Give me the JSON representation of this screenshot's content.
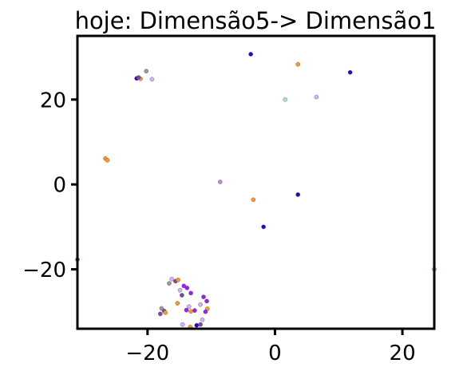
{
  "chart_data": {
    "type": "scatter",
    "title": "hoje: Dimensão5-> Dimensão1",
    "xlabel": "",
    "ylabel": "",
    "xlim": [
      -31,
      25
    ],
    "ylim": [
      -34,
      35
    ],
    "x_ticks": [
      -20,
      0,
      20
    ],
    "y_ticks": [
      -20,
      0,
      20
    ],
    "x_tick_labels": [
      "−20",
      "0",
      "20"
    ],
    "y_tick_labels": [
      "−20",
      "0",
      "20"
    ],
    "grid": false,
    "legend": "none",
    "colors": {
      "orange": "#ff9a1a",
      "blue": "#2a00d4",
      "violet": "#9a1fff",
      "purple": "#7b4aa0",
      "lilac": "#d4b0ff",
      "gray": "#9a9a9a",
      "green": "#a8e8b0",
      "pink": "#c090c8",
      "outline": "#555555"
    },
    "points": [
      {
        "x": -3.8,
        "y": 30.7,
        "c": "blue"
      },
      {
        "x": 3.6,
        "y": 28.3,
        "c": "orange"
      },
      {
        "x": 11.8,
        "y": 26.4,
        "c": "blue"
      },
      {
        "x": -20.2,
        "y": 26.7,
        "c": "gray"
      },
      {
        "x": -21.7,
        "y": 25.0,
        "c": "blue"
      },
      {
        "x": -21.1,
        "y": 24.9,
        "c": "orange"
      },
      {
        "x": -21.4,
        "y": 25.2,
        "c": "purple"
      },
      {
        "x": -19.3,
        "y": 24.8,
        "c": "lilac"
      },
      {
        "x": 1.6,
        "y": 20.0,
        "c": "green"
      },
      {
        "x": 6.5,
        "y": 20.6,
        "c": "lilac"
      },
      {
        "x": -26.6,
        "y": 6.1,
        "c": "orange"
      },
      {
        "x": -26.3,
        "y": 5.7,
        "c": "orange"
      },
      {
        "x": -8.6,
        "y": 0.6,
        "c": "pink"
      },
      {
        "x": -3.4,
        "y": -3.6,
        "c": "orange"
      },
      {
        "x": 3.6,
        "y": -2.4,
        "c": "blue"
      },
      {
        "x": -1.8,
        "y": -10.0,
        "c": "blue"
      },
      {
        "x": -31.0,
        "y": -17.7,
        "c": "purple"
      },
      {
        "x": 25.0,
        "y": -20.0,
        "c": "orange"
      },
      {
        "x": -16.2,
        "y": -22.3,
        "c": "lilac"
      },
      {
        "x": -15.6,
        "y": -22.8,
        "c": "purple"
      },
      {
        "x": -15.2,
        "y": -22.5,
        "c": "orange"
      },
      {
        "x": -16.6,
        "y": -23.3,
        "c": "gray"
      },
      {
        "x": -14.3,
        "y": -23.9,
        "c": "violet"
      },
      {
        "x": -13.8,
        "y": -24.4,
        "c": "violet"
      },
      {
        "x": -14.9,
        "y": -24.9,
        "c": "lilac"
      },
      {
        "x": -13.2,
        "y": -25.6,
        "c": "violet"
      },
      {
        "x": -14.6,
        "y": -26.1,
        "c": "purple"
      },
      {
        "x": -11.2,
        "y": -26.5,
        "c": "violet"
      },
      {
        "x": -10.7,
        "y": -27.5,
        "c": "violet"
      },
      {
        "x": -11.7,
        "y": -28.3,
        "c": "lilac"
      },
      {
        "x": -15.3,
        "y": -28.0,
        "c": "orange"
      },
      {
        "x": -13.5,
        "y": -28.8,
        "c": "lilac"
      },
      {
        "x": -17.8,
        "y": -29.2,
        "c": "gray"
      },
      {
        "x": -17.4,
        "y": -29.8,
        "c": "purple"
      },
      {
        "x": -18.0,
        "y": -30.5,
        "c": "purple"
      },
      {
        "x": -17.2,
        "y": -30.2,
        "c": "orange"
      },
      {
        "x": -13.9,
        "y": -29.6,
        "c": "violet"
      },
      {
        "x": -13.2,
        "y": -29.9,
        "c": "orange"
      },
      {
        "x": -12.6,
        "y": -29.7,
        "c": "violet"
      },
      {
        "x": -10.6,
        "y": -29.3,
        "c": "orange"
      },
      {
        "x": -10.9,
        "y": -30.0,
        "c": "violet"
      },
      {
        "x": -11.4,
        "y": -31.9,
        "c": "lilac"
      },
      {
        "x": -14.5,
        "y": -33.0,
        "c": "lilac"
      },
      {
        "x": -13.3,
        "y": -33.6,
        "c": "orange"
      },
      {
        "x": -12.3,
        "y": -33.2,
        "c": "blue"
      },
      {
        "x": -11.7,
        "y": -33.0,
        "c": "purple"
      }
    ]
  }
}
